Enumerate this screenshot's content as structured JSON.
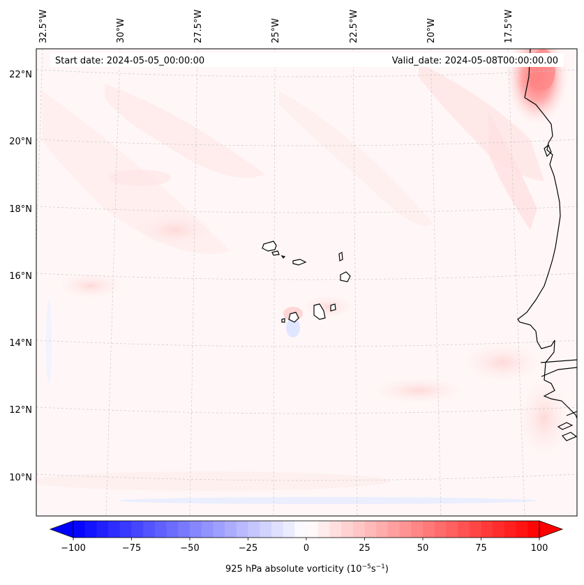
{
  "header": {
    "start_date": "Start date: 2024-05-05_00:00:00",
    "valid_date": "Valid_date: 2024-05-08T00:00:00.00"
  },
  "lon_labels": [
    "32.5°W",
    "30°W",
    "27.5°W",
    "25°W",
    "22.5°W",
    "20°W",
    "17.5°W"
  ],
  "lat_labels": [
    "22°N",
    "20°N",
    "18°N",
    "16°N",
    "14°N",
    "12°N",
    "10°N"
  ],
  "colorbar": {
    "title": "925 hPa absolute vorticity",
    "units_prefix": "(10",
    "units_exp1": "−5",
    "units_mid": "s",
    "units_exp2": "−1",
    "units_suffix": ")",
    "tick_labels": [
      "−100",
      "−75",
      "−50",
      "−25",
      "0",
      "25",
      "50",
      "75",
      "100"
    ],
    "min": -100,
    "max": 100,
    "levels": 41,
    "colormap": "bwr",
    "color_low": "#0000ff",
    "color_mid": "#ffffff",
    "color_high": "#ff0000"
  },
  "map": {
    "projection": "lambert-conformal",
    "lon_range": [
      -33,
      -15.5
    ],
    "lat_range": [
      9,
      23
    ],
    "gridlines": true,
    "coastline_color": "#000000",
    "dominant_field": "near-zero (very light pink)",
    "max_feature": "strong positive vorticity near Cap Blanc coast (~21-22.5°N, 17°W)"
  }
}
